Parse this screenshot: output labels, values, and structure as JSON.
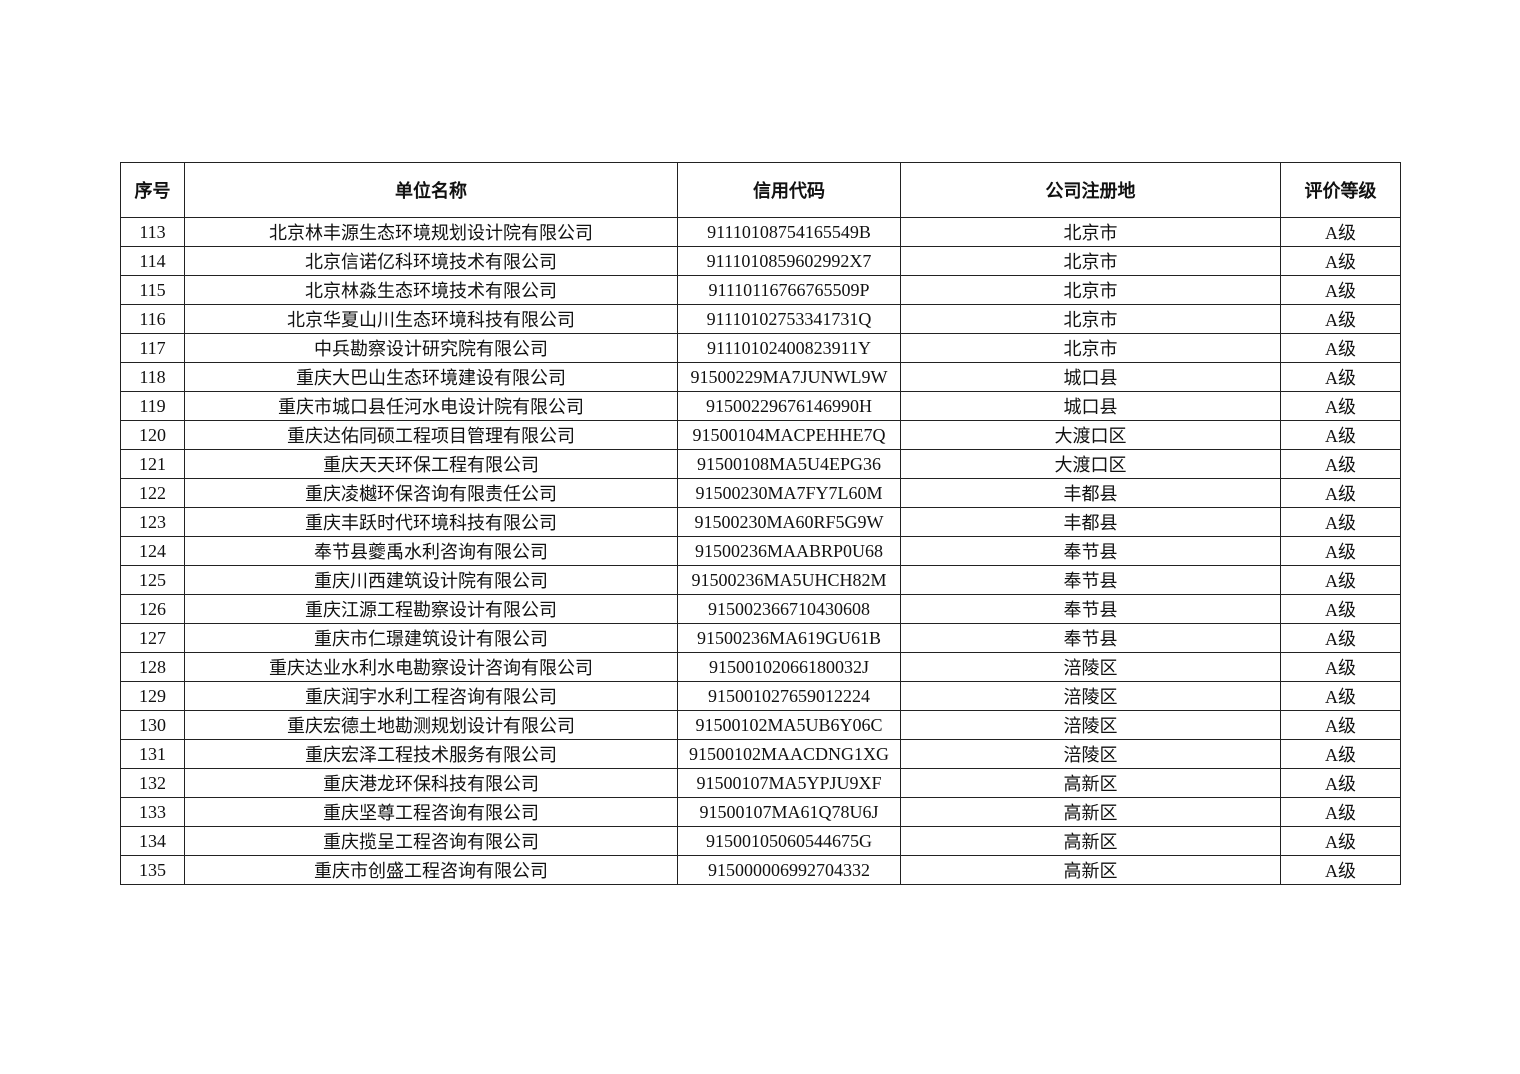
{
  "table": {
    "headers": [
      "序号",
      "单位名称",
      "信用代码",
      "公司注册地",
      "评价等级"
    ],
    "rows": [
      [
        "113",
        "北京林丰源生态环境规划设计院有限公司",
        "91110108754165549B",
        "北京市",
        "A级"
      ],
      [
        "114",
        "北京信诺亿科环境技术有限公司",
        "9111010859602992X7",
        "北京市",
        "A级"
      ],
      [
        "115",
        "北京林淼生态环境技术有限公司",
        "91110116766765509P",
        "北京市",
        "A级"
      ],
      [
        "116",
        "北京华夏山川生态环境科技有限公司",
        "91110102753341731Q",
        "北京市",
        "A级"
      ],
      [
        "117",
        "中兵勘察设计研究院有限公司",
        "91110102400823911Y",
        "北京市",
        "A级"
      ],
      [
        "118",
        "重庆大巴山生态环境建设有限公司",
        "91500229MA7JUNWL9W",
        "城口县",
        "A级"
      ],
      [
        "119",
        "重庆市城口县任河水电设计院有限公司",
        "91500229676146990H",
        "城口县",
        "A级"
      ],
      [
        "120",
        "重庆达佑同硕工程项目管理有限公司",
        "91500104MACPEHHE7Q",
        "大渡口区",
        "A级"
      ],
      [
        "121",
        "重庆天天环保工程有限公司",
        "91500108MA5U4EPG36",
        "大渡口区",
        "A级"
      ],
      [
        "122",
        "重庆凌樾环保咨询有限责任公司",
        "91500230MA7FY7L60M",
        "丰都县",
        "A级"
      ],
      [
        "123",
        "重庆丰跃时代环境科技有限公司",
        "91500230MA60RF5G9W",
        "丰都县",
        "A级"
      ],
      [
        "124",
        "奉节县夔禹水利咨询有限公司",
        "91500236MAABRP0U68",
        "奉节县",
        "A级"
      ],
      [
        "125",
        "重庆川西建筑设计院有限公司",
        "91500236MA5UHCH82M",
        "奉节县",
        "A级"
      ],
      [
        "126",
        "重庆江源工程勘察设计有限公司",
        "915002366710430608",
        "奉节县",
        "A级"
      ],
      [
        "127",
        "重庆市仁璟建筑设计有限公司",
        "91500236MA619GU61B",
        "奉节县",
        "A级"
      ],
      [
        "128",
        "重庆达业水利水电勘察设计咨询有限公司",
        "91500102066180032J",
        "涪陵区",
        "A级"
      ],
      [
        "129",
        "重庆润宇水利工程咨询有限公司",
        "915001027659012224",
        "涪陵区",
        "A级"
      ],
      [
        "130",
        "重庆宏德土地勘测规划设计有限公司",
        "91500102MA5UB6Y06C",
        "涪陵区",
        "A级"
      ],
      [
        "131",
        "重庆宏泽工程技术服务有限公司",
        "91500102MAACDNG1XG",
        "涪陵区",
        "A级"
      ],
      [
        "132",
        "重庆港龙环保科技有限公司",
        "91500107MA5YPJU9XF",
        "高新区",
        "A级"
      ],
      [
        "133",
        "重庆坚尊工程咨询有限公司",
        "91500107MA61Q78U6J",
        "高新区",
        "A级"
      ],
      [
        "134",
        "重庆揽呈工程咨询有限公司",
        "915001050605446​75G",
        "高新区",
        "A级"
      ],
      [
        "135",
        "重庆市创盛工程咨询有限公司",
        "915000006992704332",
        "高新区",
        "A级"
      ]
    ]
  }
}
